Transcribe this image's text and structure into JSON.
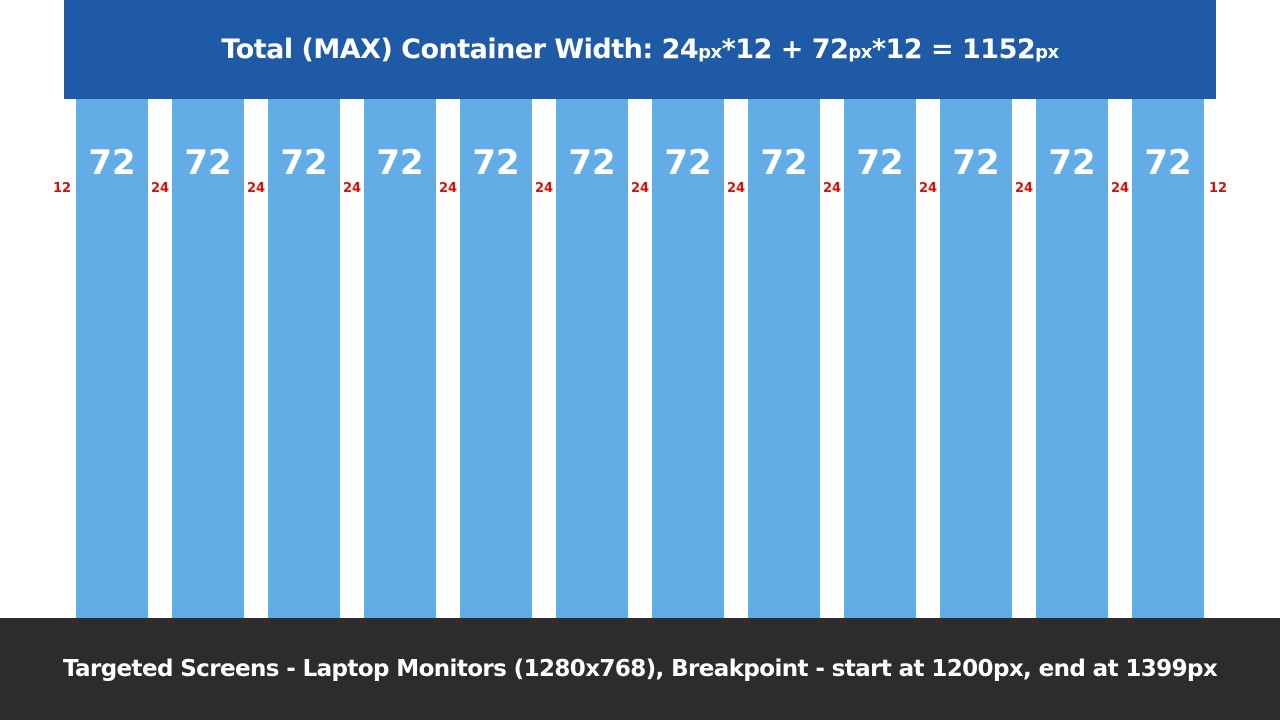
{
  "header": {
    "parts": [
      {
        "text": "Total (MAX) Container Width: 24",
        "unit": false
      },
      {
        "text": "px",
        "unit": true
      },
      {
        "text": "*12 + 72",
        "unit": false
      },
      {
        "text": "px",
        "unit": true
      },
      {
        "text": "*12 = 1152",
        "unit": false
      },
      {
        "text": "px",
        "unit": true
      }
    ]
  },
  "grid": {
    "columns": [
      "72",
      "72",
      "72",
      "72",
      "72",
      "72",
      "72",
      "72",
      "72",
      "72",
      "72",
      "72"
    ],
    "gutters": [
      "12",
      "24",
      "24",
      "24",
      "24",
      "24",
      "24",
      "24",
      "24",
      "24",
      "24",
      "24",
      "12"
    ]
  },
  "colors": {
    "header_bg": "#1f5aa6",
    "column_bg": "#62ade6",
    "gutter_label": "#d41010",
    "footer_bg": "#2c2c2c"
  },
  "footer": {
    "text": "Targeted Screens - Laptop Monitors (1280x768), Breakpoint - start at 1200px, end at 1399px"
  }
}
